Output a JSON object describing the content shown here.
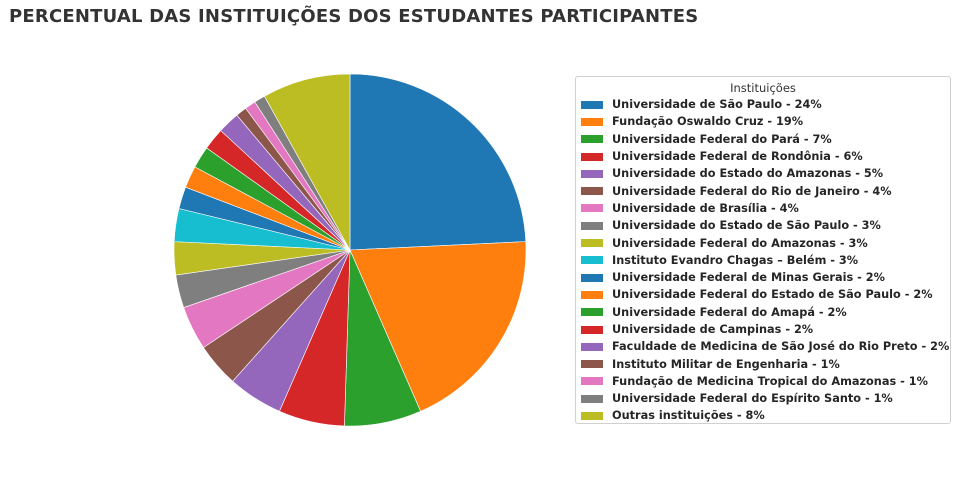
{
  "title": "PERCENTUAL DAS INSTITUIÇÕES DOS ESTUDANTES PARTICIPANTES",
  "legend_title": "Instituições",
  "chart_data": {
    "type": "pie",
    "title": "PERCENTUAL DAS INSTITUIÇÕES DOS ESTUDANTES PARTICIPANTES",
    "legend_title": "Instituições",
    "legend_position": "right",
    "start_angle_deg": 90,
    "direction": "clockwise",
    "slices": [
      {
        "label": "Universidade de São Paulo - 24%",
        "value": 24,
        "color": "#1f77b4"
      },
      {
        "label": "Fundação Oswaldo Cruz - 19%",
        "value": 19,
        "color": "#ff7f0e"
      },
      {
        "label": "Universidade Federal do Pará - 7%",
        "value": 7,
        "color": "#2ca02c"
      },
      {
        "label": "Universidade Federal de Rondônia - 6%",
        "value": 6,
        "color": "#d62728"
      },
      {
        "label": "Universidade do Estado do Amazonas - 5%",
        "value": 5,
        "color": "#9467bd"
      },
      {
        "label": "Universidade Federal do Rio de Janeiro - 4%",
        "value": 4,
        "color": "#8c564b"
      },
      {
        "label": "Universidade de Brasília - 4%",
        "value": 4,
        "color": "#e377c2"
      },
      {
        "label": "Universidade do Estado de São Paulo - 3%",
        "value": 3,
        "color": "#7f7f7f"
      },
      {
        "label": "Universidade Federal do Amazonas - 3%",
        "value": 3,
        "color": "#bcbd22"
      },
      {
        "label": "Instituto Evandro Chagas – Belém - 3%",
        "value": 3,
        "color": "#17becf"
      },
      {
        "label": "Universidade Federal de Minas Gerais - 2%",
        "value": 2,
        "color": "#1f77b4"
      },
      {
        "label": "Universidade Federal do Estado de São Paulo - 2%",
        "value": 2,
        "color": "#ff7f0e"
      },
      {
        "label": "Universidade Federal do Amapá - 2%",
        "value": 2,
        "color": "#2ca02c"
      },
      {
        "label": "Universidade de Campinas - 2%",
        "value": 2,
        "color": "#d62728"
      },
      {
        "label": "Faculdade de Medicina de São José do Rio Preto - 2%",
        "value": 2,
        "color": "#9467bd"
      },
      {
        "label": "Instituto Militar de Engenharia - 1%",
        "value": 1,
        "color": "#8c564b"
      },
      {
        "label": "Fundação de Medicina Tropical do Amazonas - 1%",
        "value": 1,
        "color": "#e377c2"
      },
      {
        "label": "Universidade Federal do Espírito Santo - 1%",
        "value": 1,
        "color": "#7f7f7f"
      },
      {
        "label": "Outras instituições - 8%",
        "value": 8,
        "color": "#bcbd22"
      }
    ]
  }
}
